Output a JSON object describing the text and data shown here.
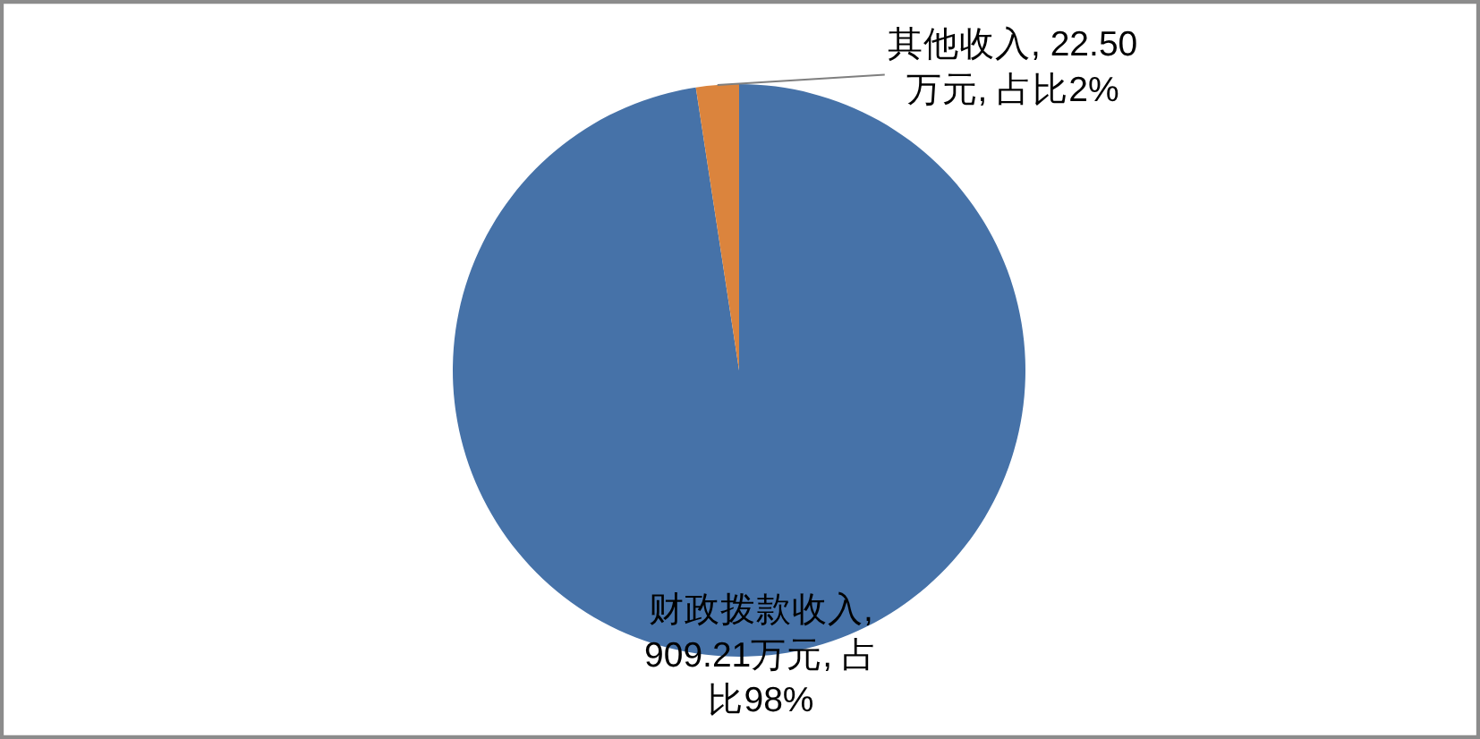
{
  "chart_data": {
    "type": "pie",
    "categories": [
      "财政拨款收入",
      "其他收入"
    ],
    "values": [
      909.21,
      22.5
    ],
    "colors": [
      "#4672a8",
      "#db843d"
    ],
    "value_labels": [
      ", 909.21万元, 占比98%",
      ", 22.50万元, 占比2%"
    ]
  }
}
